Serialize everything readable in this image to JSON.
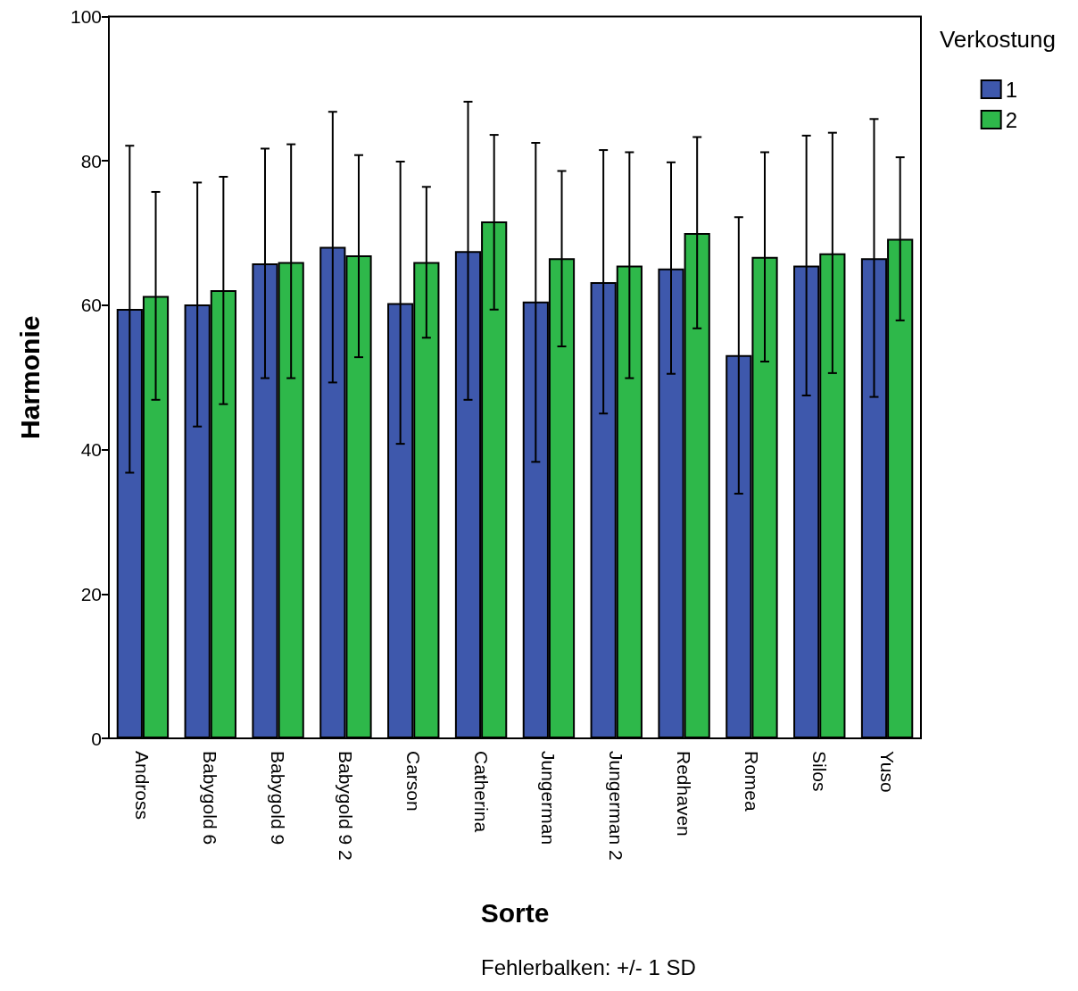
{
  "chart_data": {
    "type": "bar",
    "xlabel": "Sorte",
    "ylabel": "Harmonie",
    "legend_title": "Verkostung",
    "legend": "top right",
    "grid": false,
    "categories": [
      "Andross",
      "Babygold 6",
      "Babygold 9",
      "Babygold 9 2",
      "Carson",
      "Catherina",
      "Jungerman",
      "Jungerman 2",
      "Redhaven",
      "Romea",
      "Silos",
      "Yuso"
    ],
    "ylim": [
      0,
      100
    ],
    "yticks": [
      0,
      20,
      40,
      60,
      80,
      100
    ],
    "series": [
      {
        "name": "1",
        "color": "#3e58ac",
        "values": [
          59.5,
          60.1,
          65.8,
          68.1,
          60.3,
          67.5,
          60.5,
          63.2,
          65.1,
          53.1,
          65.5,
          66.5
        ],
        "errors": [
          [
            36.8,
            82.1
          ],
          [
            43.2,
            77.0
          ],
          [
            49.9,
            81.7
          ],
          [
            49.3,
            86.8
          ],
          [
            40.8,
            79.9
          ],
          [
            46.9,
            88.2
          ],
          [
            38.3,
            82.5
          ],
          [
            45.0,
            81.5
          ],
          [
            50.5,
            79.8
          ],
          [
            33.9,
            72.2
          ],
          [
            47.5,
            83.5
          ],
          [
            47.3,
            85.8
          ]
        ]
      },
      {
        "name": "2",
        "color": "#2eb84a",
        "values": [
          61.3,
          62.1,
          66.0,
          66.9,
          66.0,
          71.6,
          66.5,
          65.5,
          70.0,
          66.7,
          67.2,
          69.2
        ],
        "errors": [
          [
            46.9,
            75.7
          ],
          [
            46.3,
            77.8
          ],
          [
            49.9,
            82.3
          ],
          [
            52.8,
            80.8
          ],
          [
            55.5,
            76.4
          ],
          [
            59.4,
            83.6
          ],
          [
            54.3,
            78.6
          ],
          [
            49.9,
            81.2
          ],
          [
            56.8,
            83.3
          ],
          [
            52.2,
            81.2
          ],
          [
            50.6,
            83.9
          ],
          [
            57.9,
            80.5
          ]
        ]
      }
    ],
    "annotations": [
      "Fehlerbalken: +/- 1 SD"
    ]
  }
}
